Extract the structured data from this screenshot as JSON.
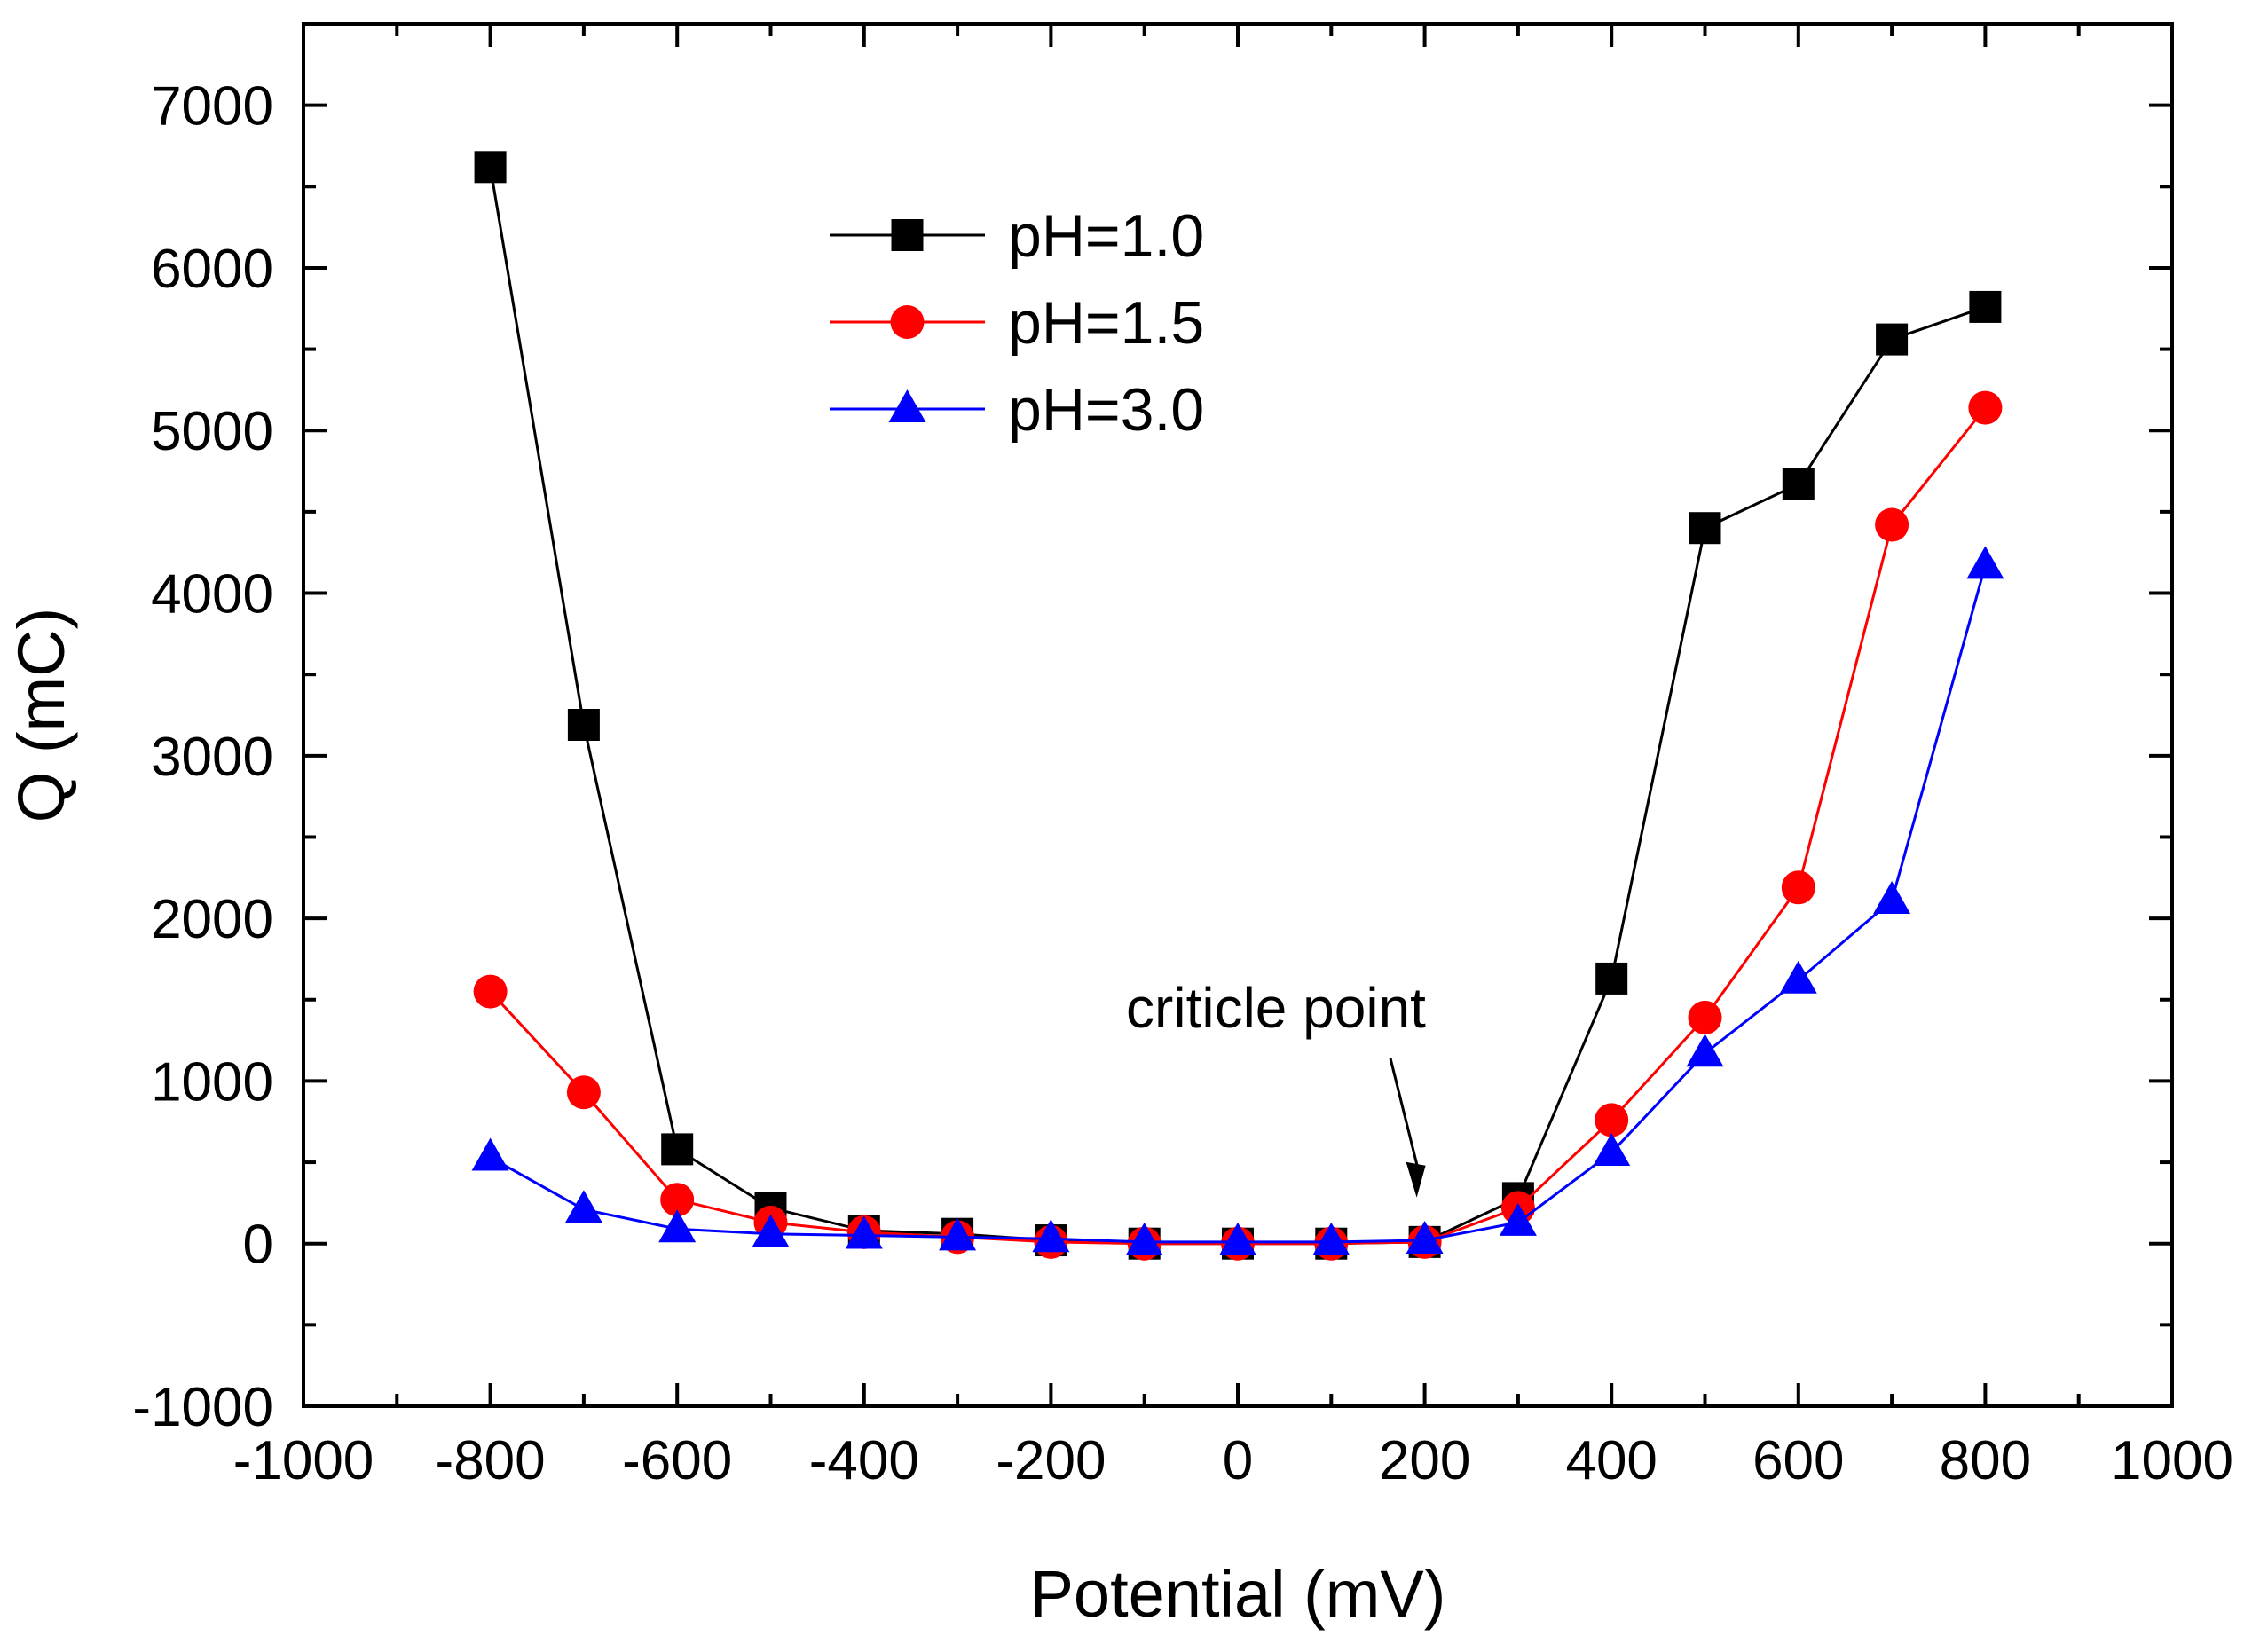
{
  "chart_data": {
    "type": "line",
    "xlabel": "Potential (mV)",
    "ylabel": "Q (mC)",
    "xlim": [
      -1000,
      1000
    ],
    "ylim": [
      -1000,
      7500
    ],
    "x_ticks": [
      -1000,
      -800,
      -600,
      -400,
      -200,
      0,
      200,
      400,
      600,
      800,
      1000
    ],
    "y_ticks": [
      -1000,
      0,
      1000,
      2000,
      3000,
      4000,
      5000,
      6000,
      7000
    ],
    "grid": false,
    "legend_position": "top-center",
    "x": [
      -800,
      -700,
      -600,
      -500,
      -400,
      -300,
      -200,
      -100,
      0,
      100,
      200,
      300,
      400,
      500,
      600,
      700,
      800
    ],
    "series": [
      {
        "name": "pH=1.0",
        "color": "#000000",
        "marker": "square",
        "values": [
          6620,
          3190,
          580,
          220,
          80,
          60,
          20,
          0,
          0,
          0,
          10,
          280,
          1630,
          4400,
          4670,
          5560,
          5760
        ]
      },
      {
        "name": "pH=1.5",
        "color": "#ff0000",
        "marker": "circle",
        "values": [
          1550,
          930,
          270,
          130,
          70,
          40,
          10,
          0,
          0,
          0,
          10,
          220,
          760,
          1390,
          2190,
          4420,
          5140
        ]
      },
      {
        "name": "pH=3.0",
        "color": "#0000ff",
        "marker": "triangle",
        "values": [
          530,
          210,
          90,
          60,
          50,
          40,
          30,
          10,
          10,
          10,
          20,
          130,
          560,
          1170,
          1620,
          2110,
          4170
        ]
      }
    ],
    "annotations": [
      {
        "text": "criticle point",
        "x": 200,
        "y": 0
      }
    ]
  }
}
